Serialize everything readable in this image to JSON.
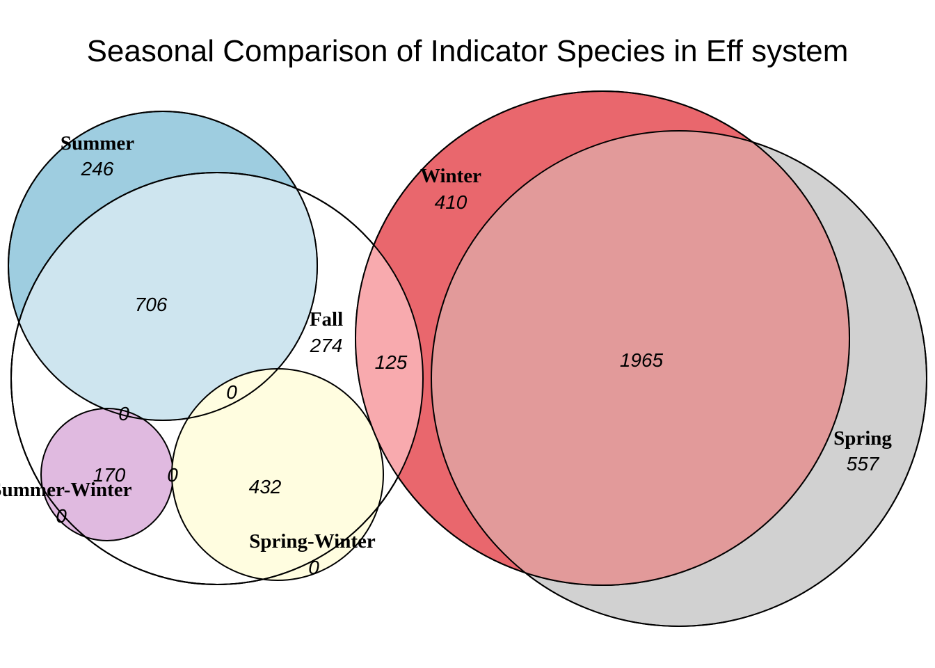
{
  "title": "Seasonal Comparison of Indicator Species in Eff system",
  "colors": {
    "summer": "#9ecde0",
    "summer_fall": "#cee5ef",
    "fall": "#ffffff",
    "summer_winter": "#e0bae0",
    "summer_winter_edge": "#9a5c9a",
    "spring_winter": "#fffde0",
    "spring_winter_edge": "#fbf3a0",
    "winter": "#e9676d",
    "fall_winter": "#f8aaae",
    "spring": "#d1d1d1",
    "winter_spring": "#e29a9a"
  },
  "sets": {
    "summer": {
      "label": "Summer",
      "count": "246"
    },
    "fall": {
      "label": "Fall",
      "count": "274"
    },
    "winter": {
      "label": "Winter",
      "count": "410"
    },
    "spring": {
      "label": "Spring",
      "count": "557"
    },
    "summer_winter": {
      "label": "Summer-Winter",
      "count": "0"
    },
    "spring_winter": {
      "label": "Spring-Winter",
      "count": "0"
    }
  },
  "intersections": {
    "summer_fall": "706",
    "summer_fall_springwinter": "0",
    "summer_fall_summerwinter": "0",
    "fall_summerwinter": "170",
    "fall_summerwinter_springwinter": "0",
    "fall_springwinter": "432",
    "fall_winter": "125",
    "winter_spring": "1965"
  }
}
